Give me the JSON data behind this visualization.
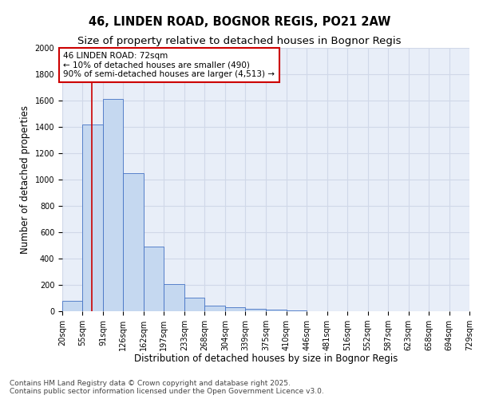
{
  "title": "46, LINDEN ROAD, BOGNOR REGIS, PO21 2AW",
  "subtitle": "Size of property relative to detached houses in Bognor Regis",
  "xlabel": "Distribution of detached houses by size in Bognor Regis",
  "ylabel": "Number of detached properties",
  "bar_color": "#c5d8f0",
  "bar_edge_color": "#4472c4",
  "background_color": "#e8eef8",
  "grid_color": "#d0d8e8",
  "bin_edges": [
    20,
    55,
    91,
    126,
    162,
    197,
    233,
    268,
    304,
    339,
    375,
    410,
    446,
    481,
    516,
    552,
    587,
    623,
    658,
    694,
    729
  ],
  "bin_labels": [
    "20sqm",
    "55sqm",
    "91sqm",
    "126sqm",
    "162sqm",
    "197sqm",
    "233sqm",
    "268sqm",
    "304sqm",
    "339sqm",
    "375sqm",
    "410sqm",
    "446sqm",
    "481sqm",
    "516sqm",
    "552sqm",
    "587sqm",
    "623sqm",
    "658sqm",
    "694sqm",
    "729sqm"
  ],
  "bar_heights": [
    80,
    1420,
    1610,
    1050,
    490,
    205,
    105,
    40,
    30,
    20,
    15,
    5,
    2,
    1,
    0,
    0,
    0,
    0,
    0,
    0
  ],
  "ylim": [
    0,
    2000
  ],
  "property_size": 72,
  "red_line_color": "#cc0000",
  "annotation_text": "46 LINDEN ROAD: 72sqm\n← 10% of detached houses are smaller (490)\n90% of semi-detached houses are larger (4,513) →",
  "annotation_box_color": "#ffffff",
  "annotation_box_edge_color": "#cc0000",
  "footer_text": "Contains HM Land Registry data © Crown copyright and database right 2025.\nContains public sector information licensed under the Open Government Licence v3.0.",
  "title_fontsize": 10.5,
  "subtitle_fontsize": 9.5,
  "axis_label_fontsize": 8.5,
  "tick_fontsize": 7,
  "annotation_fontsize": 7.5,
  "footer_fontsize": 6.5
}
